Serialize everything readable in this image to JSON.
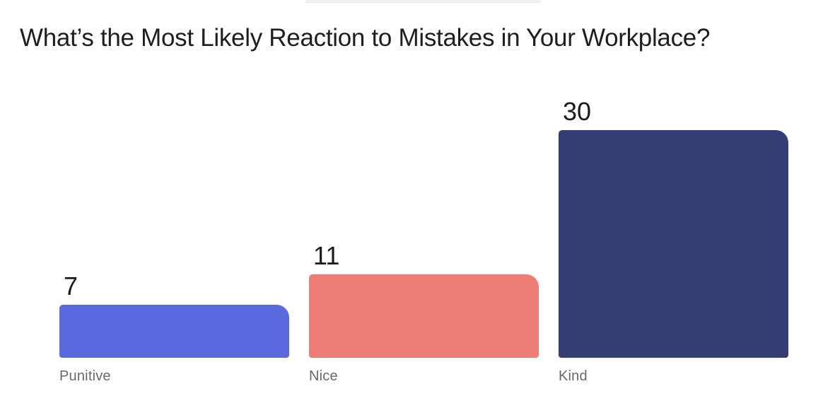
{
  "page": {
    "background_color": "#ffffff",
    "top_strip_color": "#f2f2f3"
  },
  "chart_data": {
    "type": "bar",
    "title": "What’s the Most Likely Reaction to Mistakes in Your Workplace?",
    "categories": [
      "Punitive",
      "Nice",
      "Kind"
    ],
    "values": [
      7,
      11,
      30
    ],
    "bar_colors": [
      "#5A69DE",
      "#EC7C74",
      "#343E75"
    ],
    "xlabel": "",
    "ylabel": "",
    "ylim": [
      0,
      30
    ],
    "grid": false,
    "legend": false,
    "value_labels_shown": true,
    "axis_shown": false,
    "title_color": "#1E1E1E",
    "value_label_color": "#1C1C1C",
    "category_label_color": "#686868"
  }
}
